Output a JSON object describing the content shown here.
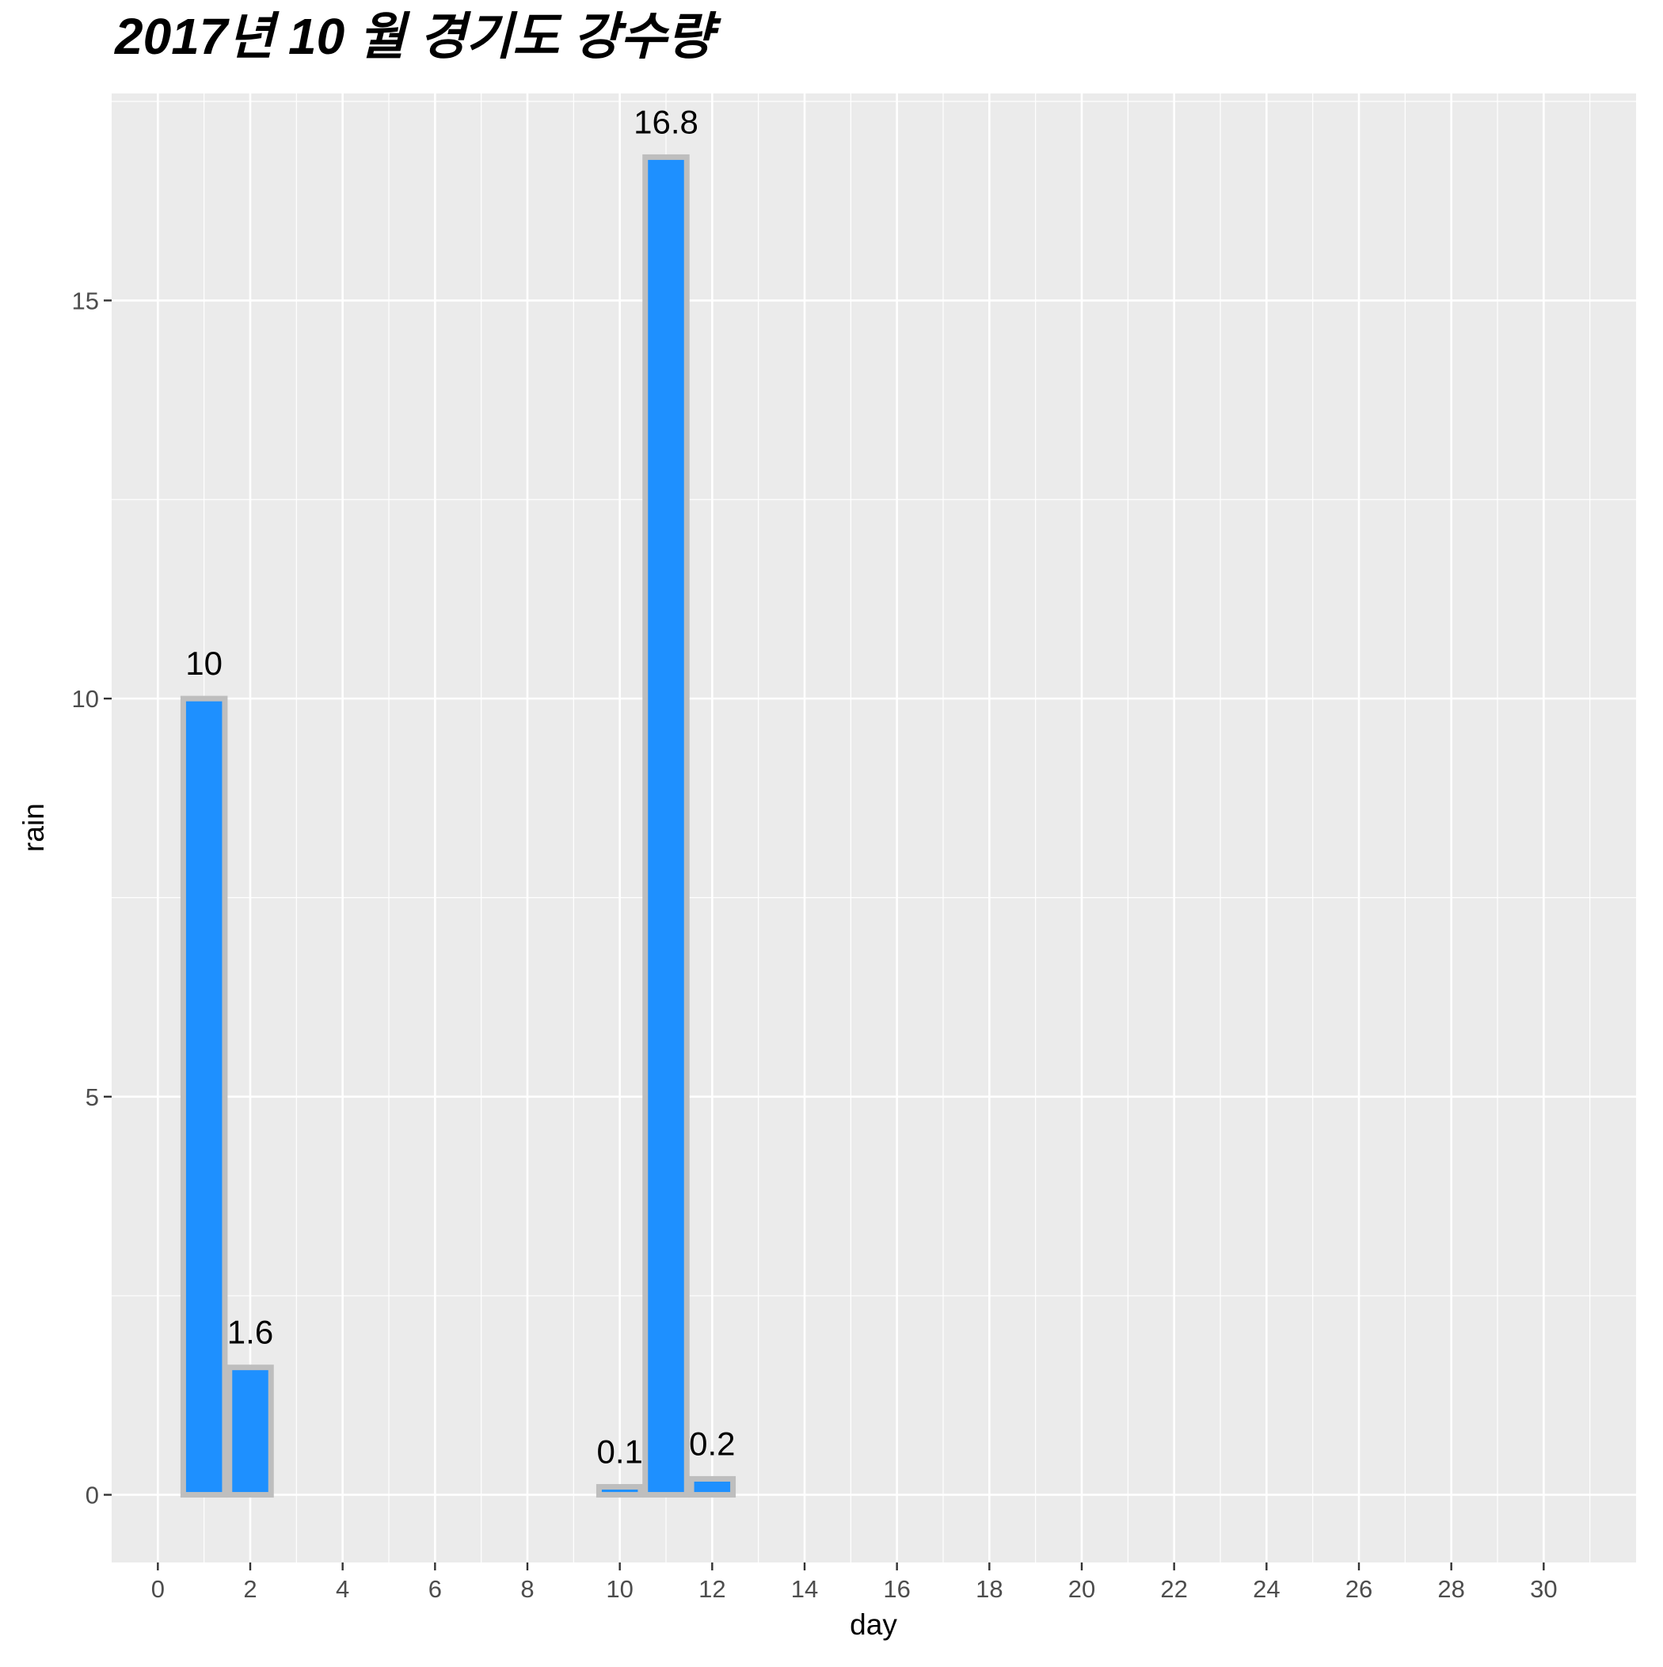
{
  "chart_data": {
    "type": "bar",
    "title": "2017년 10 월 경기도 강수량",
    "xlabel": "day",
    "ylabel": "rain",
    "xlim": [
      -1,
      32
    ],
    "ylim": [
      -0.85,
      17.6
    ],
    "x_ticks": [
      0,
      2,
      4,
      6,
      8,
      10,
      12,
      14,
      16,
      18,
      20,
      22,
      24,
      26,
      28,
      30
    ],
    "y_ticks": [
      0,
      5,
      10,
      15
    ],
    "grid": true,
    "bar_fill": "#1E90FF",
    "bar_outline": "#BEBEBE",
    "panel_background": "#EBEBEB",
    "bars": [
      {
        "day": 1,
        "rain": 10,
        "label": "10"
      },
      {
        "day": 2,
        "rain": 1.6,
        "label": "1.6"
      },
      {
        "day": 10,
        "rain": 0.1,
        "label": "0.1"
      },
      {
        "day": 11,
        "rain": 16.8,
        "label": "16.8"
      },
      {
        "day": 12,
        "rain": 0.2,
        "label": "0.2"
      }
    ]
  }
}
